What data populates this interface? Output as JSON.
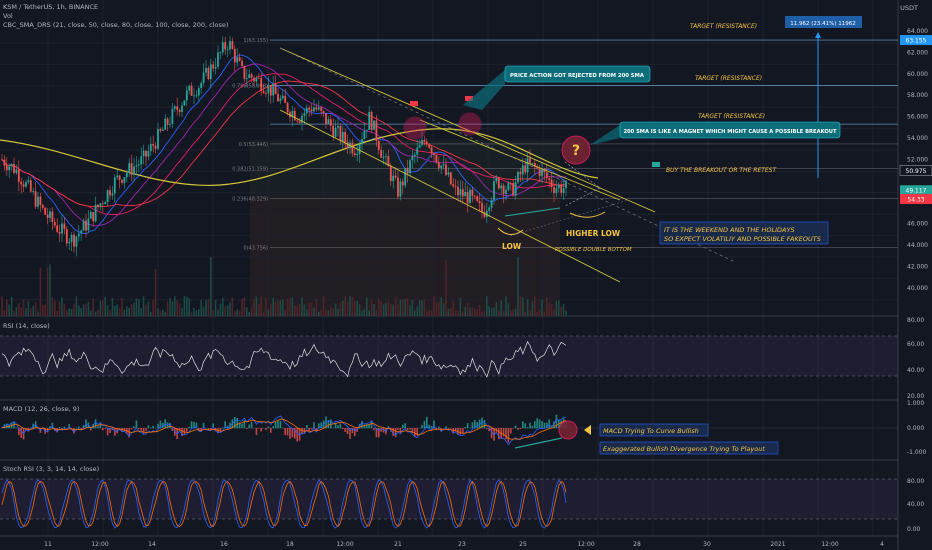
{
  "header": {
    "symbol_line": "KSM / TetherUS, 1h, BINANCE",
    "vol_label": "Vol",
    "sma_label": "CBC_SMA_DRS (21, close, 50, close, 80, close, 100, close, 200, close)",
    "currency": "USDT"
  },
  "price_axis": {
    "ticks": [
      "64.000",
      "62.000",
      "60.000",
      "58.000",
      "56.000",
      "54.000",
      "52.000",
      "48.000",
      "46.000",
      "44.000",
      "42.000",
      "40.000"
    ],
    "badges": [
      {
        "text": "63.155",
        "color": "#2196f3"
      },
      {
        "text": "50.975",
        "color": "#131722"
      },
      {
        "text": "49.117",
        "color": "#26a69a"
      },
      {
        "text": "54.33",
        "color": "#f23645"
      }
    ]
  },
  "time_axis": {
    "labels": [
      "11",
      "12:00",
      "14",
      "16",
      "18",
      "12:00",
      "21",
      "23",
      "25",
      "12:00",
      "28",
      "30",
      "2021",
      "12:00",
      "4"
    ]
  },
  "fib_labels": [
    "1(63.155)",
    "0.786(58.908)",
    "0.5(53.446)",
    "0.382(51.159)",
    "0.236(48.329)",
    "0(43.756)"
  ],
  "annotations": {
    "target1": "TARGET (RESISTANCE)",
    "target2": "TARGET (RESISTANCE)",
    "target3": "TARGET (RESISTANCE)",
    "rejected": "PRICE ACTION GOT REJECTED FROM 200 SMA",
    "magnet": "200 SMA IS LIKE A MAGNET WHICH MIGHT CAUSE A POSSIBLE BREAKOUT",
    "buy": "BUY THE BREAKOUT OR THE RETEST",
    "weekend_line1": "IT IS THE WEEKEND AND THE HOLIDAYS",
    "weekend_line2": "SO EXPECT VOLATILIY AND POSSIBLE FAKEOUTS",
    "higher_low": "HIGHER LOW",
    "low": "LOW",
    "double_bottom": "POSSIBLE DOUBLE BOTTOM",
    "question": "?",
    "measure": "11.962 (23.41%) 11962",
    "macd_curve": "MACD Trying To Curve Bullish",
    "divergence": "Exaggerated Bullish Divergence Trying To Playout"
  },
  "panes": {
    "rsi_label": "RSI (14, close)",
    "rsi_ticks": [
      "80.00",
      "60.00",
      "40.00",
      "20.00"
    ],
    "macd_label": "MACD (12, 26, close, 9)",
    "macd_ticks": [
      "1.000",
      "0.000",
      "-1.000"
    ],
    "stoch_label": "Stoch RSI (3, 3, 14, 14, close)",
    "stoch_ticks": [
      "80.00",
      "40.00",
      "0.00"
    ]
  },
  "chart_data": {
    "type": "candlestick",
    "symbol": "KSM/USDT",
    "interval": "1h",
    "ylim": [
      39,
      65
    ],
    "key_levels": {
      "target": 63.155,
      "current": 50.975,
      "fib_0786": 58.908,
      "fib_05": 53.446,
      "fib_0382": 51.159,
      "fib_0236": 48.329,
      "fib_0": 43.756
    },
    "price_path": [
      52,
      51,
      49,
      47,
      45.5,
      44.5,
      46,
      48,
      50,
      51,
      52,
      54,
      56,
      58,
      59,
      61,
      63,
      60,
      59.5,
      58.5,
      57,
      56,
      57,
      55.5,
      54,
      53,
      56,
      52,
      49,
      52,
      54,
      51.5,
      49,
      48.5,
      47,
      50,
      49,
      51.5,
      51,
      49.5,
      49.3
    ],
    "rsi_ylim": [
      20,
      80
    ],
    "macd_ylim": [
      -1.5,
      1.5
    ],
    "stoch_ylim": [
      0,
      100
    ]
  }
}
